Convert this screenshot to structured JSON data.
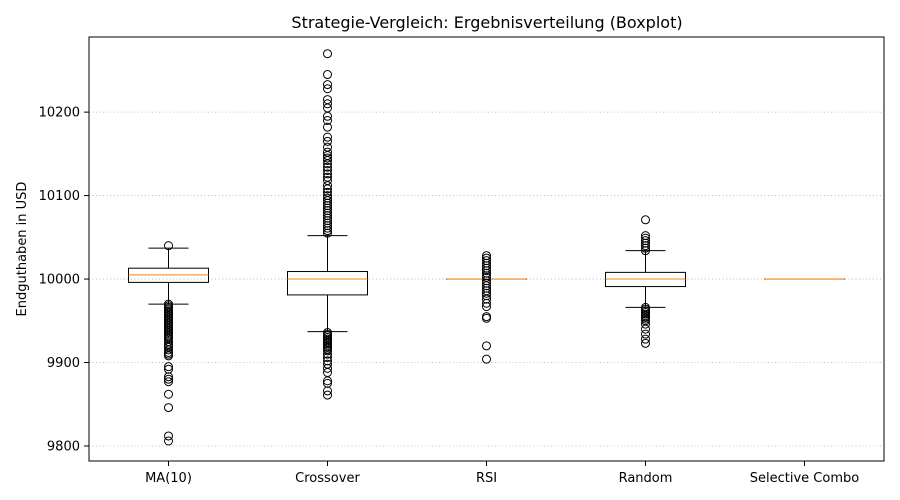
{
  "chart_data": {
    "type": "boxplot",
    "title": "Strategie-Vergleich: Ergebnisverteilung (Boxplot)",
    "xlabel": "",
    "ylabel": "Endguthaben in USD",
    "ylim": [
      9782,
      10290
    ],
    "yticks": [
      9800,
      9900,
      10000,
      10100,
      10200
    ],
    "grid": {
      "y": true,
      "style": "dotted"
    },
    "colors": {
      "box": "#000000",
      "median": "#ff7f0e",
      "grid": "#b0b0b0"
    },
    "categories": [
      "MA(10)",
      "Crossover",
      "RSI",
      "Random",
      "Selective Combo"
    ],
    "boxes": [
      {
        "label": "MA(10)",
        "whisker_low": 9970,
        "q1": 9996,
        "median": 10005,
        "q3": 10013,
        "whisker_high": 10037,
        "outliers": [
          10040,
          9970,
          9968,
          9966,
          9964,
          9962,
          9960,
          9958,
          9956,
          9954,
          9952,
          9950,
          9948,
          9946,
          9944,
          9942,
          9940,
          9938,
          9936,
          9934,
          9932,
          9930,
          9928,
          9925,
          9922,
          9920,
          9918,
          9915,
          9912,
          9910,
          9908,
          9895,
          9892,
          9883,
          9880,
          9877,
          9862,
          9846,
          9812,
          9806
        ]
      },
      {
        "label": "Crossover",
        "whisker_low": 9937,
        "q1": 9981,
        "median": 10000,
        "q3": 10009,
        "whisker_high": 10052,
        "outliers": [
          10270,
          10245,
          10233,
          10228,
          10215,
          10210,
          10205,
          10195,
          10190,
          10182,
          10170,
          10165,
          10158,
          10152,
          10148,
          10145,
          10142,
          10138,
          10134,
          10130,
          10126,
          10122,
          10118,
          10112,
          10108,
          10104,
          10100,
          10097,
          10094,
          10091,
          10088,
          10085,
          10082,
          10079,
          10076,
          10073,
          10070,
          10067,
          10064,
          10061,
          10058,
          10055,
          9936,
          9934,
          9932,
          9930,
          9928,
          9926,
          9924,
          9922,
          9920,
          9918,
          9916,
          9914,
          9910,
          9906,
          9902,
          9898,
          9893,
          9888,
          9878,
          9875,
          9866,
          9861
        ]
      },
      {
        "label": "RSI",
        "whisker_low": 10000,
        "q1": 10000,
        "median": 10000,
        "q3": 10000,
        "whisker_high": 10000,
        "outliers": [
          10028,
          10025,
          10022,
          10019,
          10016,
          10013,
          10010,
          10007,
          10004,
          10002,
          9998,
          9995,
          9992,
          9989,
          9986,
          9983,
          9980,
          9976,
          9971,
          9967,
          9955,
          9953,
          9920,
          9904
        ]
      },
      {
        "label": "Random",
        "whisker_low": 9966,
        "q1": 9991,
        "median": 10000,
        "q3": 10008,
        "whisker_high": 10034,
        "outliers": [
          10071,
          10052,
          10049,
          10046,
          10043,
          10040,
          10037,
          10034,
          9966,
          9964,
          9962,
          9960,
          9958,
          9956,
          9954,
          9952,
          9950,
          9946,
          9940,
          9934,
          9928,
          9923
        ]
      },
      {
        "label": "Selective Combo",
        "whisker_low": 10000,
        "q1": 10000,
        "median": 10000,
        "q3": 10000,
        "whisker_high": 10000,
        "outliers": []
      }
    ]
  }
}
